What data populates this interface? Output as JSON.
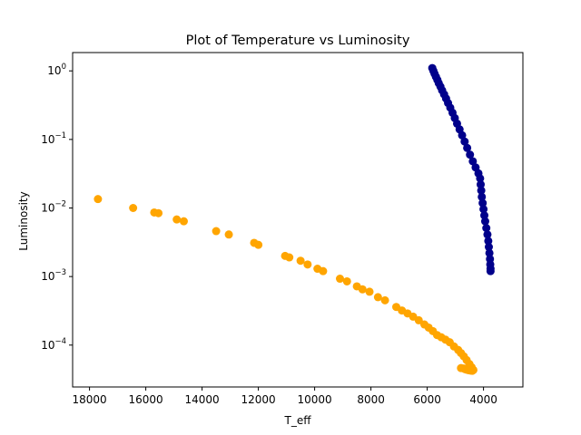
{
  "chart_data": {
    "type": "scatter",
    "title": "Plot of Temperature vs Luminosity",
    "xlabel": "T_eff",
    "ylabel": "Luminosity",
    "xlim": [
      18600,
      2600
    ],
    "x_inverted": true,
    "ylim": [
      2.45e-05,
      1.85
    ],
    "y_scale": "log",
    "grid": false,
    "x_ticks": [
      18000,
      16000,
      14000,
      12000,
      10000,
      8000,
      6000,
      4000
    ],
    "x_tick_labels": [
      "18000",
      "16000",
      "14000",
      "12000",
      "10000",
      "8000",
      "6000",
      "4000"
    ],
    "y_ticks": [
      0.0001,
      0.001,
      0.01,
      0.1,
      1
    ],
    "y_tick_labels": [
      {
        "base": "10",
        "exp": "−4"
      },
      {
        "base": "10",
        "exp": "−3"
      },
      {
        "base": "10",
        "exp": "−2"
      },
      {
        "base": "10",
        "exp": "−1"
      },
      {
        "base": "10",
        "exp": "0"
      }
    ],
    "series": [
      {
        "color": "#ffa500",
        "points": [
          [
            17700,
            0.0135
          ],
          [
            16450,
            0.01
          ],
          [
            15700,
            0.0086
          ],
          [
            15550,
            0.0084
          ],
          [
            14900,
            0.0068
          ],
          [
            14650,
            0.0064
          ],
          [
            13500,
            0.0046
          ],
          [
            13050,
            0.0041
          ],
          [
            12150,
            0.0031
          ],
          [
            12000,
            0.0029
          ],
          [
            11050,
            0.002
          ],
          [
            10900,
            0.0019
          ],
          [
            10500,
            0.0017
          ],
          [
            10250,
            0.0015
          ],
          [
            9900,
            0.0013
          ],
          [
            9700,
            0.0012
          ],
          [
            9100,
            0.00093
          ],
          [
            8850,
            0.00085
          ],
          [
            8500,
            0.00072
          ],
          [
            8300,
            0.00065
          ],
          [
            8050,
            0.0006
          ],
          [
            7750,
            0.0005
          ],
          [
            7500,
            0.00045
          ],
          [
            7100,
            0.00036
          ],
          [
            6900,
            0.00032
          ],
          [
            6700,
            0.00029
          ],
          [
            6500,
            0.00026
          ],
          [
            6300,
            0.00023
          ],
          [
            6100,
            0.0002
          ],
          [
            5950,
            0.00018
          ],
          [
            5800,
            0.00016
          ],
          [
            5650,
            0.00014
          ],
          [
            5500,
            0.00013
          ],
          [
            5350,
            0.00012
          ],
          [
            5200,
            0.00011
          ],
          [
            5050,
            9.55e-05
          ],
          [
            4900,
            8.5e-05
          ],
          [
            4800,
            7.65e-05
          ],
          [
            4700,
            6.85e-05
          ],
          [
            4600,
            6.05e-05
          ],
          [
            4500,
            5.3e-05
          ],
          [
            4420,
            4.75e-05
          ],
          [
            4360,
            4.32e-05
          ],
          [
            4800,
            4.62e-05
          ],
          [
            4700,
            4.55e-05
          ],
          [
            4650,
            4.45e-05
          ],
          [
            4600,
            4.38e-05
          ],
          [
            4550,
            4.32e-05
          ],
          [
            4500,
            4.28e-05
          ],
          [
            4450,
            4.25e-05
          ],
          [
            4400,
            4.22e-05
          ]
        ]
      },
      {
        "color": "#00008b",
        "points": [
          [
            5820,
            1.1
          ],
          [
            5780,
            1.0
          ],
          [
            5740,
            0.91
          ],
          [
            5690,
            0.82
          ],
          [
            5640,
            0.74
          ],
          [
            5590,
            0.66
          ],
          [
            5530,
            0.59
          ],
          [
            5470,
            0.52
          ],
          [
            5400,
            0.455
          ],
          [
            5330,
            0.395
          ],
          [
            5260,
            0.34
          ],
          [
            5180,
            0.29
          ],
          [
            5100,
            0.245
          ],
          [
            5020,
            0.205
          ],
          [
            4940,
            0.17
          ],
          [
            4850,
            0.14
          ],
          [
            4760,
            0.115
          ],
          [
            4670,
            0.093
          ],
          [
            4580,
            0.075
          ],
          [
            4480,
            0.06
          ],
          [
            4380,
            0.048
          ],
          [
            4280,
            0.039
          ],
          [
            4180,
            0.032
          ],
          [
            4120,
            0.027
          ],
          [
            4100,
            0.022
          ],
          [
            4080,
            0.018
          ],
          [
            4060,
            0.0145
          ],
          [
            4030,
            0.0118
          ],
          [
            4000,
            0.0096
          ],
          [
            3970,
            0.0078
          ],
          [
            3940,
            0.0064
          ],
          [
            3900,
            0.0051
          ],
          [
            3860,
            0.0041
          ],
          [
            3830,
            0.0033
          ],
          [
            3810,
            0.0027
          ],
          [
            3790,
            0.0022
          ],
          [
            3770,
            0.0018
          ],
          [
            3760,
            0.0015
          ],
          [
            3750,
            0.0013
          ],
          [
            3750,
            0.0012
          ]
        ]
      }
    ]
  }
}
